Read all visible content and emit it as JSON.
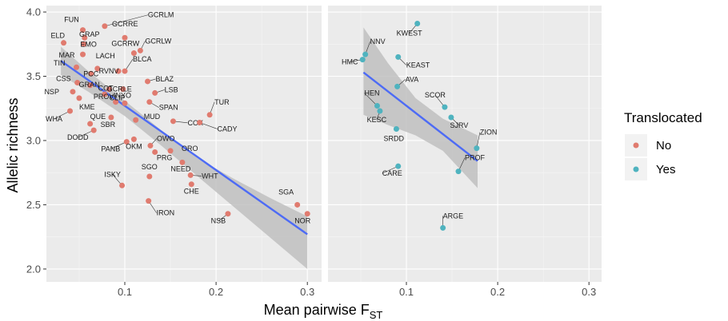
{
  "chart_data": {
    "type": "scatter",
    "xlabel": "Mean pairwise F",
    "xlabel_sub": "ST",
    "ylabel": "Allelic richness",
    "xlim": [
      0.025,
      0.31
    ],
    "ylim": [
      1.9,
      4.05
    ],
    "x_ticks": [
      0.1,
      0.2,
      0.3
    ],
    "x_tick_labels": [
      "0.1",
      "0.2",
      "0.3"
    ],
    "y_ticks": [
      2.0,
      2.5,
      3.0,
      3.5,
      4.0
    ],
    "y_tick_labels": [
      "2.0",
      "2.5",
      "3.0",
      "3.5",
      "4.0"
    ],
    "grid": true,
    "colors": {
      "No": "#e07b6f",
      "Yes": "#4fb3bf",
      "fit": "#4d6bf5",
      "band": "#bdbdbd",
      "panel": "#ebebeb"
    },
    "legend": {
      "title": "Translocated",
      "placement": "right",
      "entries": [
        {
          "label": "No",
          "color": "#e07b6f"
        },
        {
          "label": "Yes",
          "color": "#4fb3bf"
        }
      ]
    },
    "panels": [
      {
        "group": "No",
        "fit": {
          "x": [
            0.03,
            0.3
          ],
          "y": [
            3.62,
            2.27
          ]
        },
        "band": {
          "x": [
            0.03,
            0.06,
            0.1,
            0.14,
            0.18,
            0.22,
            0.26,
            0.3
          ],
          "upper": [
            3.73,
            3.54,
            3.31,
            3.08,
            2.86,
            2.7,
            2.55,
            2.41
          ],
          "lower": [
            3.51,
            3.38,
            3.19,
            2.96,
            2.72,
            2.48,
            2.24,
            2.0
          ]
        },
        "points": [
          {
            "name": "FUN",
            "x": 0.054,
            "y": 3.86
          },
          {
            "name": "GCRLM",
            "x": 0.078,
            "y": 3.89
          },
          {
            "name": "GRAP",
            "x": 0.056,
            "y": 3.8
          },
          {
            "name": "GCRRE",
            "x": 0.1,
            "y": 3.8
          },
          {
            "name": "ELD",
            "x": 0.033,
            "y": 3.76
          },
          {
            "name": "EMO",
            "x": 0.055,
            "y": 3.75
          },
          {
            "name": "MAR",
            "x": 0.054,
            "y": 3.67
          },
          {
            "name": "GCRRW",
            "x": 0.11,
            "y": 3.68
          },
          {
            "name": "GCRLW",
            "x": 0.117,
            "y": 3.7
          },
          {
            "name": "BLCA",
            "x": 0.1,
            "y": 3.54
          },
          {
            "name": "LACH",
            "x": 0.07,
            "y": 3.56
          },
          {
            "name": "TIN",
            "x": 0.047,
            "y": 3.57
          },
          {
            "name": "PCC",
            "x": 0.063,
            "y": 3.52
          },
          {
            "name": "RVNV",
            "x": 0.093,
            "y": 3.54
          },
          {
            "name": "BLAZ",
            "x": 0.125,
            "y": 3.46
          },
          {
            "name": "CSS",
            "x": 0.048,
            "y": 3.45
          },
          {
            "name": "GRAN",
            "x": 0.062,
            "y": 3.43
          },
          {
            "name": "COT",
            "x": 0.083,
            "y": 3.4
          },
          {
            "name": "GCRLE",
            "x": 0.098,
            "y": 3.4
          },
          {
            "name": "LSB",
            "x": 0.133,
            "y": 3.37
          },
          {
            "name": "NSP",
            "x": 0.043,
            "y": 3.38
          },
          {
            "name": "KME",
            "x": 0.05,
            "y": 3.33
          },
          {
            "name": "PROV",
            "x": 0.078,
            "y": 3.36
          },
          {
            "name": "CLIP",
            "x": 0.09,
            "y": 3.3
          },
          {
            "name": "INYO",
            "x": 0.1,
            "y": 3.29
          },
          {
            "name": "SPAN",
            "x": 0.127,
            "y": 3.3
          },
          {
            "name": "TUR",
            "x": 0.193,
            "y": 3.2
          },
          {
            "name": "WHA",
            "x": 0.04,
            "y": 3.23
          },
          {
            "name": "QUE",
            "x": 0.062,
            "y": 3.13
          },
          {
            "name": "SBR",
            "x": 0.085,
            "y": 3.18
          },
          {
            "name": "MUD",
            "x": 0.112,
            "y": 3.16
          },
          {
            "name": "COX",
            "x": 0.153,
            "y": 3.15
          },
          {
            "name": "CADY",
            "x": 0.182,
            "y": 3.14
          },
          {
            "name": "DODD",
            "x": 0.066,
            "y": 3.08
          },
          {
            "name": "PANB",
            "x": 0.102,
            "y": 2.99
          },
          {
            "name": "OKM",
            "x": 0.11,
            "y": 3.01
          },
          {
            "name": "OWO",
            "x": 0.128,
            "y": 2.96
          },
          {
            "name": "ORO",
            "x": 0.15,
            "y": 2.92
          },
          {
            "name": "PRG",
            "x": 0.133,
            "y": 2.91
          },
          {
            "name": "NEED",
            "x": 0.163,
            "y": 2.83
          },
          {
            "name": "SGO",
            "x": 0.127,
            "y": 2.72
          },
          {
            "name": "WHT",
            "x": 0.172,
            "y": 2.73
          },
          {
            "name": "ISKY",
            "x": 0.097,
            "y": 2.65
          },
          {
            "name": "CHE",
            "x": 0.173,
            "y": 2.66
          },
          {
            "name": "IRON",
            "x": 0.126,
            "y": 2.53
          },
          {
            "name": "SGA",
            "x": 0.289,
            "y": 2.5
          },
          {
            "name": "NSB",
            "x": 0.213,
            "y": 2.43
          },
          {
            "name": "NOR",
            "x": 0.3,
            "y": 2.43
          }
        ]
      },
      {
        "group": "Yes",
        "fit": {
          "x": [
            0.053,
            0.178
          ],
          "y": [
            3.53,
            2.84
          ]
        },
        "band": {
          "x": [
            0.053,
            0.08,
            0.11,
            0.14,
            0.178
          ],
          "upper": [
            3.88,
            3.6,
            3.33,
            3.17,
            3.04
          ],
          "lower": [
            3.2,
            3.12,
            3.04,
            2.92,
            2.63
          ]
        },
        "points": [
          {
            "name": "KWEST",
            "x": 0.112,
            "y": 3.91
          },
          {
            "name": "NNV",
            "x": 0.055,
            "y": 3.67
          },
          {
            "name": "HMC",
            "x": 0.052,
            "y": 3.63
          },
          {
            "name": "KEAST",
            "x": 0.091,
            "y": 3.65
          },
          {
            "name": "AVA",
            "x": 0.09,
            "y": 3.42
          },
          {
            "name": "HEN",
            "x": 0.068,
            "y": 3.27
          },
          {
            "name": "SCOR",
            "x": 0.142,
            "y": 3.26
          },
          {
            "name": "KESC",
            "x": 0.071,
            "y": 3.23
          },
          {
            "name": "SJRV",
            "x": 0.149,
            "y": 3.18
          },
          {
            "name": "SRDD",
            "x": 0.089,
            "y": 3.09
          },
          {
            "name": "ZION",
            "x": 0.177,
            "y": 2.94
          },
          {
            "name": "PROF",
            "x": 0.157,
            "y": 2.76
          },
          {
            "name": "CARE",
            "x": 0.091,
            "y": 2.8
          },
          {
            "name": "ARGE",
            "x": 0.14,
            "y": 2.32
          }
        ]
      }
    ]
  }
}
